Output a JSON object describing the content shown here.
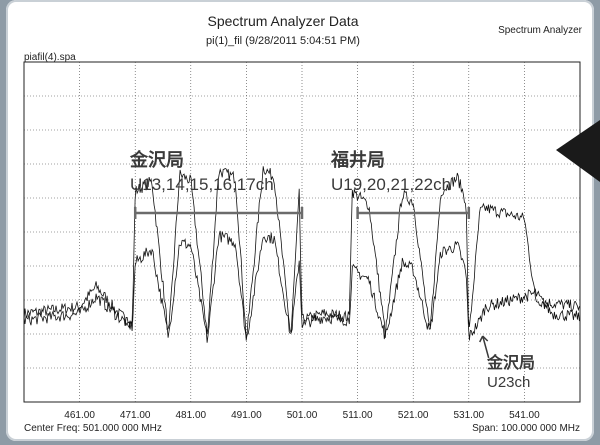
{
  "header": {
    "title": "Spectrum Analyzer Data",
    "subtitle": "pi(1)_fil (9/28/2011 5:04:51 PM)",
    "app_name": "Spectrum Analyzer",
    "file_name": "piafil(4).spa"
  },
  "footer": {
    "center_freq": "Center Freq: 501.000 000 MHz",
    "span": "Span: 100.000 000 MHz"
  },
  "annotations": [
    {
      "name": "kanazawa-main",
      "station": "金沢局",
      "channels": "U13,14,15,16,17ch",
      "x_from": 471,
      "x_to": 501
    },
    {
      "name": "fukui",
      "station": "福井局",
      "channels": "U19,20,21,22ch",
      "x_from": 511,
      "x_to": 531
    },
    {
      "name": "kanazawa-u23",
      "station": "金沢局",
      "channels": "U23ch",
      "x_point": 533.5
    }
  ],
  "chart_data": {
    "type": "line",
    "xlabel": "",
    "ylabel": "",
    "xlim": [
      451,
      551
    ],
    "ylim": [
      0,
      10
    ],
    "grid": true,
    "x_ticks": [
      461,
      471,
      481,
      491,
      501,
      511,
      521,
      531,
      541
    ],
    "x_tick_labels": [
      "461.00",
      "471.00",
      "481.00",
      "491.00",
      "501.00",
      "511.00",
      "521.00",
      "531.00",
      "541.00"
    ],
    "y_divisions": 10,
    "series": [
      {
        "x": [
          451,
          461,
          464,
          466,
          468,
          470.5,
          471,
          474,
          477,
          479,
          481,
          484,
          486,
          489,
          491,
          494,
          496,
          499,
          500.5,
          501,
          505,
          509.5,
          510,
          513,
          516,
          519,
          521,
          524,
          526,
          529,
          530.5,
          531,
          533,
          534,
          541,
          543,
          546,
          551
        ],
        "y": [
          2.6,
          2.8,
          3.4,
          3.0,
          2.6,
          2.3,
          6.2,
          6.5,
          1.9,
          6.7,
          6.5,
          1.9,
          6.8,
          6.6,
          1.8,
          6.9,
          6.6,
          1.9,
          6.1,
          2.4,
          2.6,
          2.5,
          6.2,
          5.8,
          2.0,
          6.1,
          5.9,
          2.0,
          6.2,
          6.6,
          5.9,
          1.9,
          5.6,
          5.7,
          5.4,
          3.0,
          2.9,
          2.8
        ]
      },
      {
        "x": [
          451,
          461,
          464,
          466,
          468,
          470.5,
          471,
          474,
          477,
          479,
          481,
          484,
          486,
          489,
          491,
          494,
          496,
          499,
          500.5,
          501,
          505,
          509.5,
          510,
          513,
          516,
          519,
          521,
          524,
          526,
          529,
          530.5,
          531,
          533,
          534,
          541,
          543,
          546,
          551
        ],
        "y": [
          2.4,
          2.6,
          3.1,
          2.8,
          2.5,
          2.2,
          4.1,
          4.5,
          1.9,
          4.7,
          4.6,
          1.8,
          4.9,
          4.7,
          1.8,
          4.9,
          4.8,
          1.9,
          4.2,
          2.3,
          2.5,
          2.4,
          3.9,
          3.6,
          1.9,
          4.1,
          3.9,
          2.0,
          4.4,
          4.6,
          3.8,
          1.9,
          2.4,
          2.8,
          3.1,
          3.2,
          2.6,
          2.5
        ]
      }
    ]
  }
}
